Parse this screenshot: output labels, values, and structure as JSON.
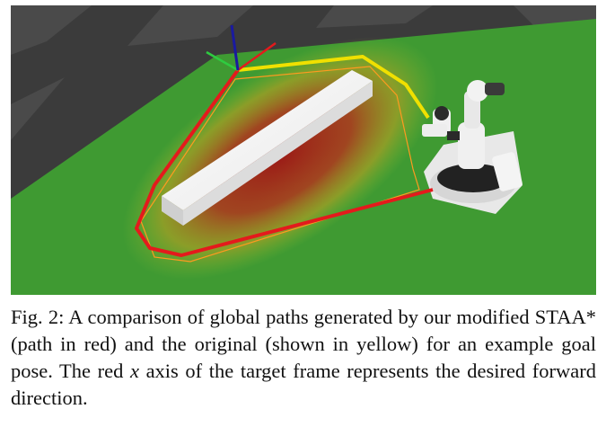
{
  "figure": {
    "colors": {
      "floor_dark": "#3b3b3b",
      "floor_light": "#4a4a4a",
      "ground": "#3f9a32",
      "cost_map": "#b22222",
      "box": "#f2f2f2",
      "path_modified": "#e41a1c",
      "path_original": "#f0e000",
      "axis_x": "#e41a1c",
      "axis_y": "#2ecc40",
      "axis_z": "#1a1aa0"
    },
    "objects": [
      "white-obstacle-box",
      "mobile-manipulator-robot",
      "goal-pose-frame",
      "cost-map-heat",
      "modified-path",
      "original-path"
    ]
  },
  "caption": {
    "part1": "Fig. 2: A comparison of global paths generated by our modified STAA* (path in red) and the original (shown in yellow) for an example goal pose. The red ",
    "var": "x",
    "part2": " axis of the target frame represents the desired forward direction."
  }
}
